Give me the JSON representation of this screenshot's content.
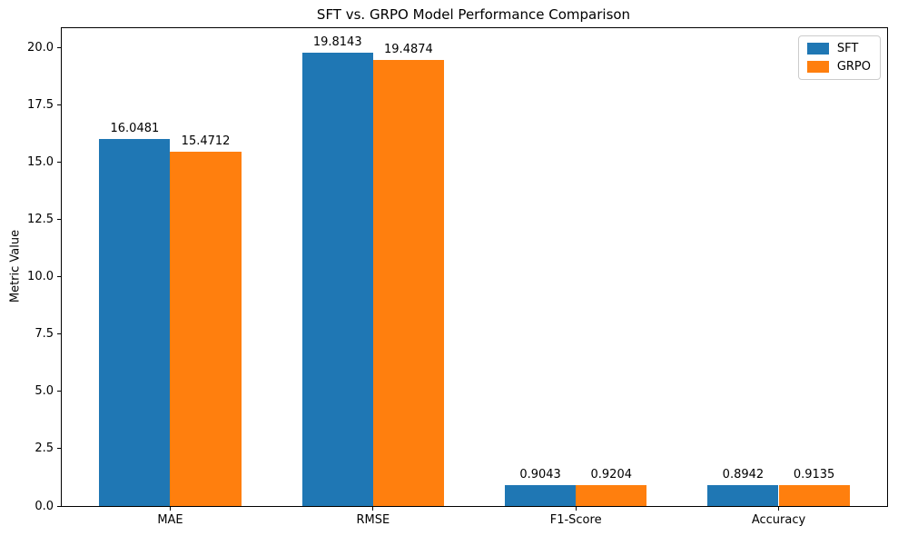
{
  "chart_data": {
    "type": "bar",
    "title": "SFT vs. GRPO Model Performance Comparison",
    "xlabel": "",
    "ylabel": "Metric Value",
    "categories": [
      "MAE",
      "RMSE",
      "F1-Score",
      "Accuracy"
    ],
    "series": [
      {
        "name": "SFT",
        "color": "#1f77b4",
        "values": [
          16.0481,
          19.8143,
          0.9043,
          0.8942
        ]
      },
      {
        "name": "GRPO",
        "color": "#ff7f0e",
        "values": [
          15.4712,
          19.4874,
          0.9204,
          0.9135
        ]
      }
    ],
    "bar_value_label_decimals": 4,
    "y_ticks": [
      "0.0",
      "2.5",
      "5.0",
      "7.5",
      "10.0",
      "12.5",
      "15.0",
      "17.5",
      "20.0"
    ],
    "ylim": [
      0,
      20.87
    ],
    "grid": false,
    "legend_location": "upper right"
  }
}
